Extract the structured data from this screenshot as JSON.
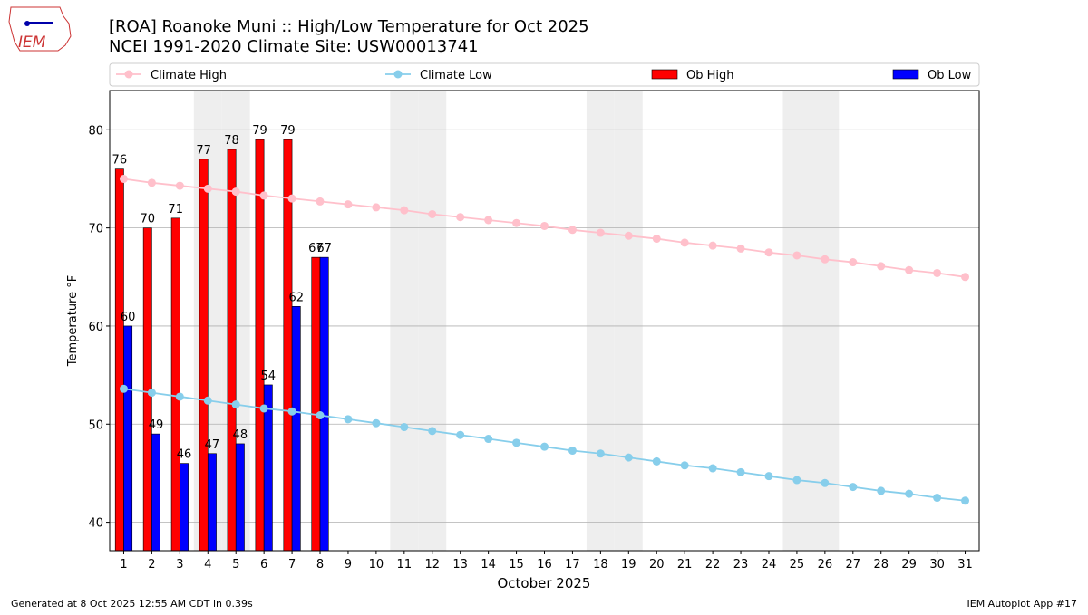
{
  "logo_text": "IEM",
  "chart_data": {
    "type": "bar",
    "title": "[ROA] Roanoke Muni :: High/Low Temperature for Oct 2025",
    "subtitle": "NCEI 1991-2020 Climate Site: USW00013741",
    "x_label": "October 2025",
    "y_label": "Temperature °F",
    "footer_left": "Generated at 8 Oct 2025 12:55 AM CDT in 0.39s",
    "footer_right": "IEM Autoplot App #17",
    "x": [
      1,
      2,
      3,
      4,
      5,
      6,
      7,
      8,
      9,
      10,
      11,
      12,
      13,
      14,
      15,
      16,
      17,
      18,
      19,
      20,
      21,
      22,
      23,
      24,
      25,
      26,
      27,
      28,
      29,
      30,
      31
    ],
    "xlim": [
      0.5,
      31.5
    ],
    "xticks": [
      1,
      2,
      3,
      4,
      5,
      6,
      7,
      8,
      9,
      10,
      11,
      12,
      13,
      14,
      15,
      16,
      17,
      18,
      19,
      20,
      21,
      22,
      23,
      24,
      25,
      26,
      27,
      28,
      29,
      30,
      31
    ],
    "ylim": [
      37.1,
      84
    ],
    "yticks": [
      40,
      50,
      60,
      70,
      80
    ],
    "grid": true,
    "legend": "top",
    "weekends": [
      4,
      5,
      11,
      12,
      18,
      19,
      25,
      26
    ],
    "weekend_color": "#eeeeee",
    "series": [
      {
        "name": "Climate High",
        "type": "line",
        "color": "#ffc0cb",
        "values": [
          75.0,
          74.6,
          74.3,
          74.0,
          73.7,
          73.3,
          73.0,
          72.7,
          72.4,
          72.1,
          71.8,
          71.4,
          71.1,
          70.8,
          70.5,
          70.2,
          69.8,
          69.5,
          69.2,
          68.9,
          68.5,
          68.2,
          67.9,
          67.5,
          67.2,
          66.8,
          66.5,
          66.1,
          65.7,
          65.4,
          65.0
        ]
      },
      {
        "name": "Climate Low",
        "type": "line",
        "color": "#87ceeb",
        "values": [
          53.6,
          53.2,
          52.8,
          52.4,
          52.0,
          51.6,
          51.3,
          50.9,
          50.5,
          50.1,
          49.7,
          49.3,
          48.9,
          48.5,
          48.1,
          47.7,
          47.3,
          47.0,
          46.6,
          46.2,
          45.8,
          45.5,
          45.1,
          44.7,
          44.3,
          44.0,
          43.6,
          43.2,
          42.9,
          42.5,
          42.2
        ]
      },
      {
        "name": "Ob High",
        "type": "bar",
        "color": "#ff0000",
        "values": [
          76,
          70,
          71,
          77,
          78,
          79,
          79,
          67,
          null,
          null,
          null,
          null,
          null,
          null,
          null,
          null,
          null,
          null,
          null,
          null,
          null,
          null,
          null,
          null,
          null,
          null,
          null,
          null,
          null,
          null,
          null
        ]
      },
      {
        "name": "Ob Low",
        "type": "bar",
        "color": "#0000ff",
        "values": [
          60,
          49,
          46,
          47,
          48,
          54,
          62,
          67,
          null,
          null,
          null,
          null,
          null,
          null,
          null,
          null,
          null,
          null,
          null,
          null,
          null,
          null,
          null,
          null,
          null,
          null,
          null,
          null,
          null,
          null,
          null
        ]
      }
    ]
  }
}
